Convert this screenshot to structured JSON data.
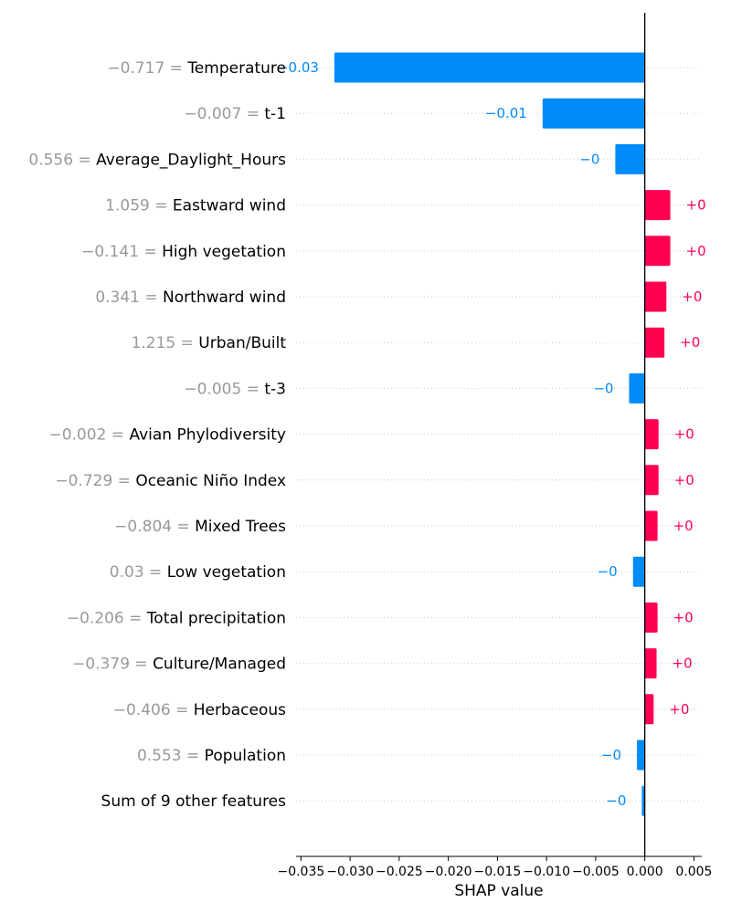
{
  "chart_data": {
    "type": "bar",
    "orientation": "horizontal",
    "xlabel": "SHAP value",
    "xlim": [
      -0.0355,
      0.0058
    ],
    "xticks": [
      -0.035,
      -0.03,
      -0.025,
      -0.02,
      -0.015,
      -0.01,
      -0.005,
      0.0,
      0.005
    ],
    "xtick_labels": [
      "−0.035",
      "−0.030",
      "−0.025",
      "−0.020",
      "−0.015",
      "−0.010",
      "−0.005",
      "0.000",
      "0.005"
    ],
    "colors": {
      "positive": "#ff0051",
      "negative": "#008bfb",
      "feature_value": "#999999",
      "grid": "#cccccc"
    },
    "features": [
      {
        "value_text": "−0.717",
        "name": "Temperature",
        "shap": -0.0316,
        "label": "−0.03"
      },
      {
        "value_text": "−0.007",
        "name": "t-1",
        "shap": -0.0104,
        "label": "−0.01"
      },
      {
        "value_text": "0.556",
        "name": "Average_Daylight_Hours",
        "shap": -0.003,
        "label": "−0"
      },
      {
        "value_text": "1.059",
        "name": "Eastward wind",
        "shap": 0.0026,
        "label": "+0"
      },
      {
        "value_text": "−0.141",
        "name": "High vegetation",
        "shap": 0.0026,
        "label": "+0"
      },
      {
        "value_text": "0.341",
        "name": "Northward wind",
        "shap": 0.0022,
        "label": "+0"
      },
      {
        "value_text": "1.215",
        "name": "Urban/Built",
        "shap": 0.002,
        "label": "+0"
      },
      {
        "value_text": "−0.005",
        "name": "t-3",
        "shap": -0.0016,
        "label": "−0"
      },
      {
        "value_text": "−0.002",
        "name": "Avian Phylodiversity",
        "shap": 0.0014,
        "label": "+0"
      },
      {
        "value_text": "−0.729",
        "name": "Oceanic Niño Index",
        "shap": 0.0014,
        "label": "+0"
      },
      {
        "value_text": "−0.804",
        "name": "Mixed Trees",
        "shap": 0.0013,
        "label": "+0"
      },
      {
        "value_text": "0.03",
        "name": "Low vegetation",
        "shap": -0.0012,
        "label": "−0"
      },
      {
        "value_text": "−0.206",
        "name": "Total precipitation",
        "shap": 0.0013,
        "label": "+0"
      },
      {
        "value_text": "−0.379",
        "name": "Culture/Managed",
        "shap": 0.0012,
        "label": "+0"
      },
      {
        "value_text": "−0.406",
        "name": "Herbaceous",
        "shap": 0.0009,
        "label": "+0"
      },
      {
        "value_text": "0.553",
        "name": "Population",
        "shap": -0.0008,
        "label": "−0"
      },
      {
        "value_text": "",
        "name": "Sum of 9 other features",
        "shap": -0.0003,
        "label": "−0"
      }
    ]
  }
}
